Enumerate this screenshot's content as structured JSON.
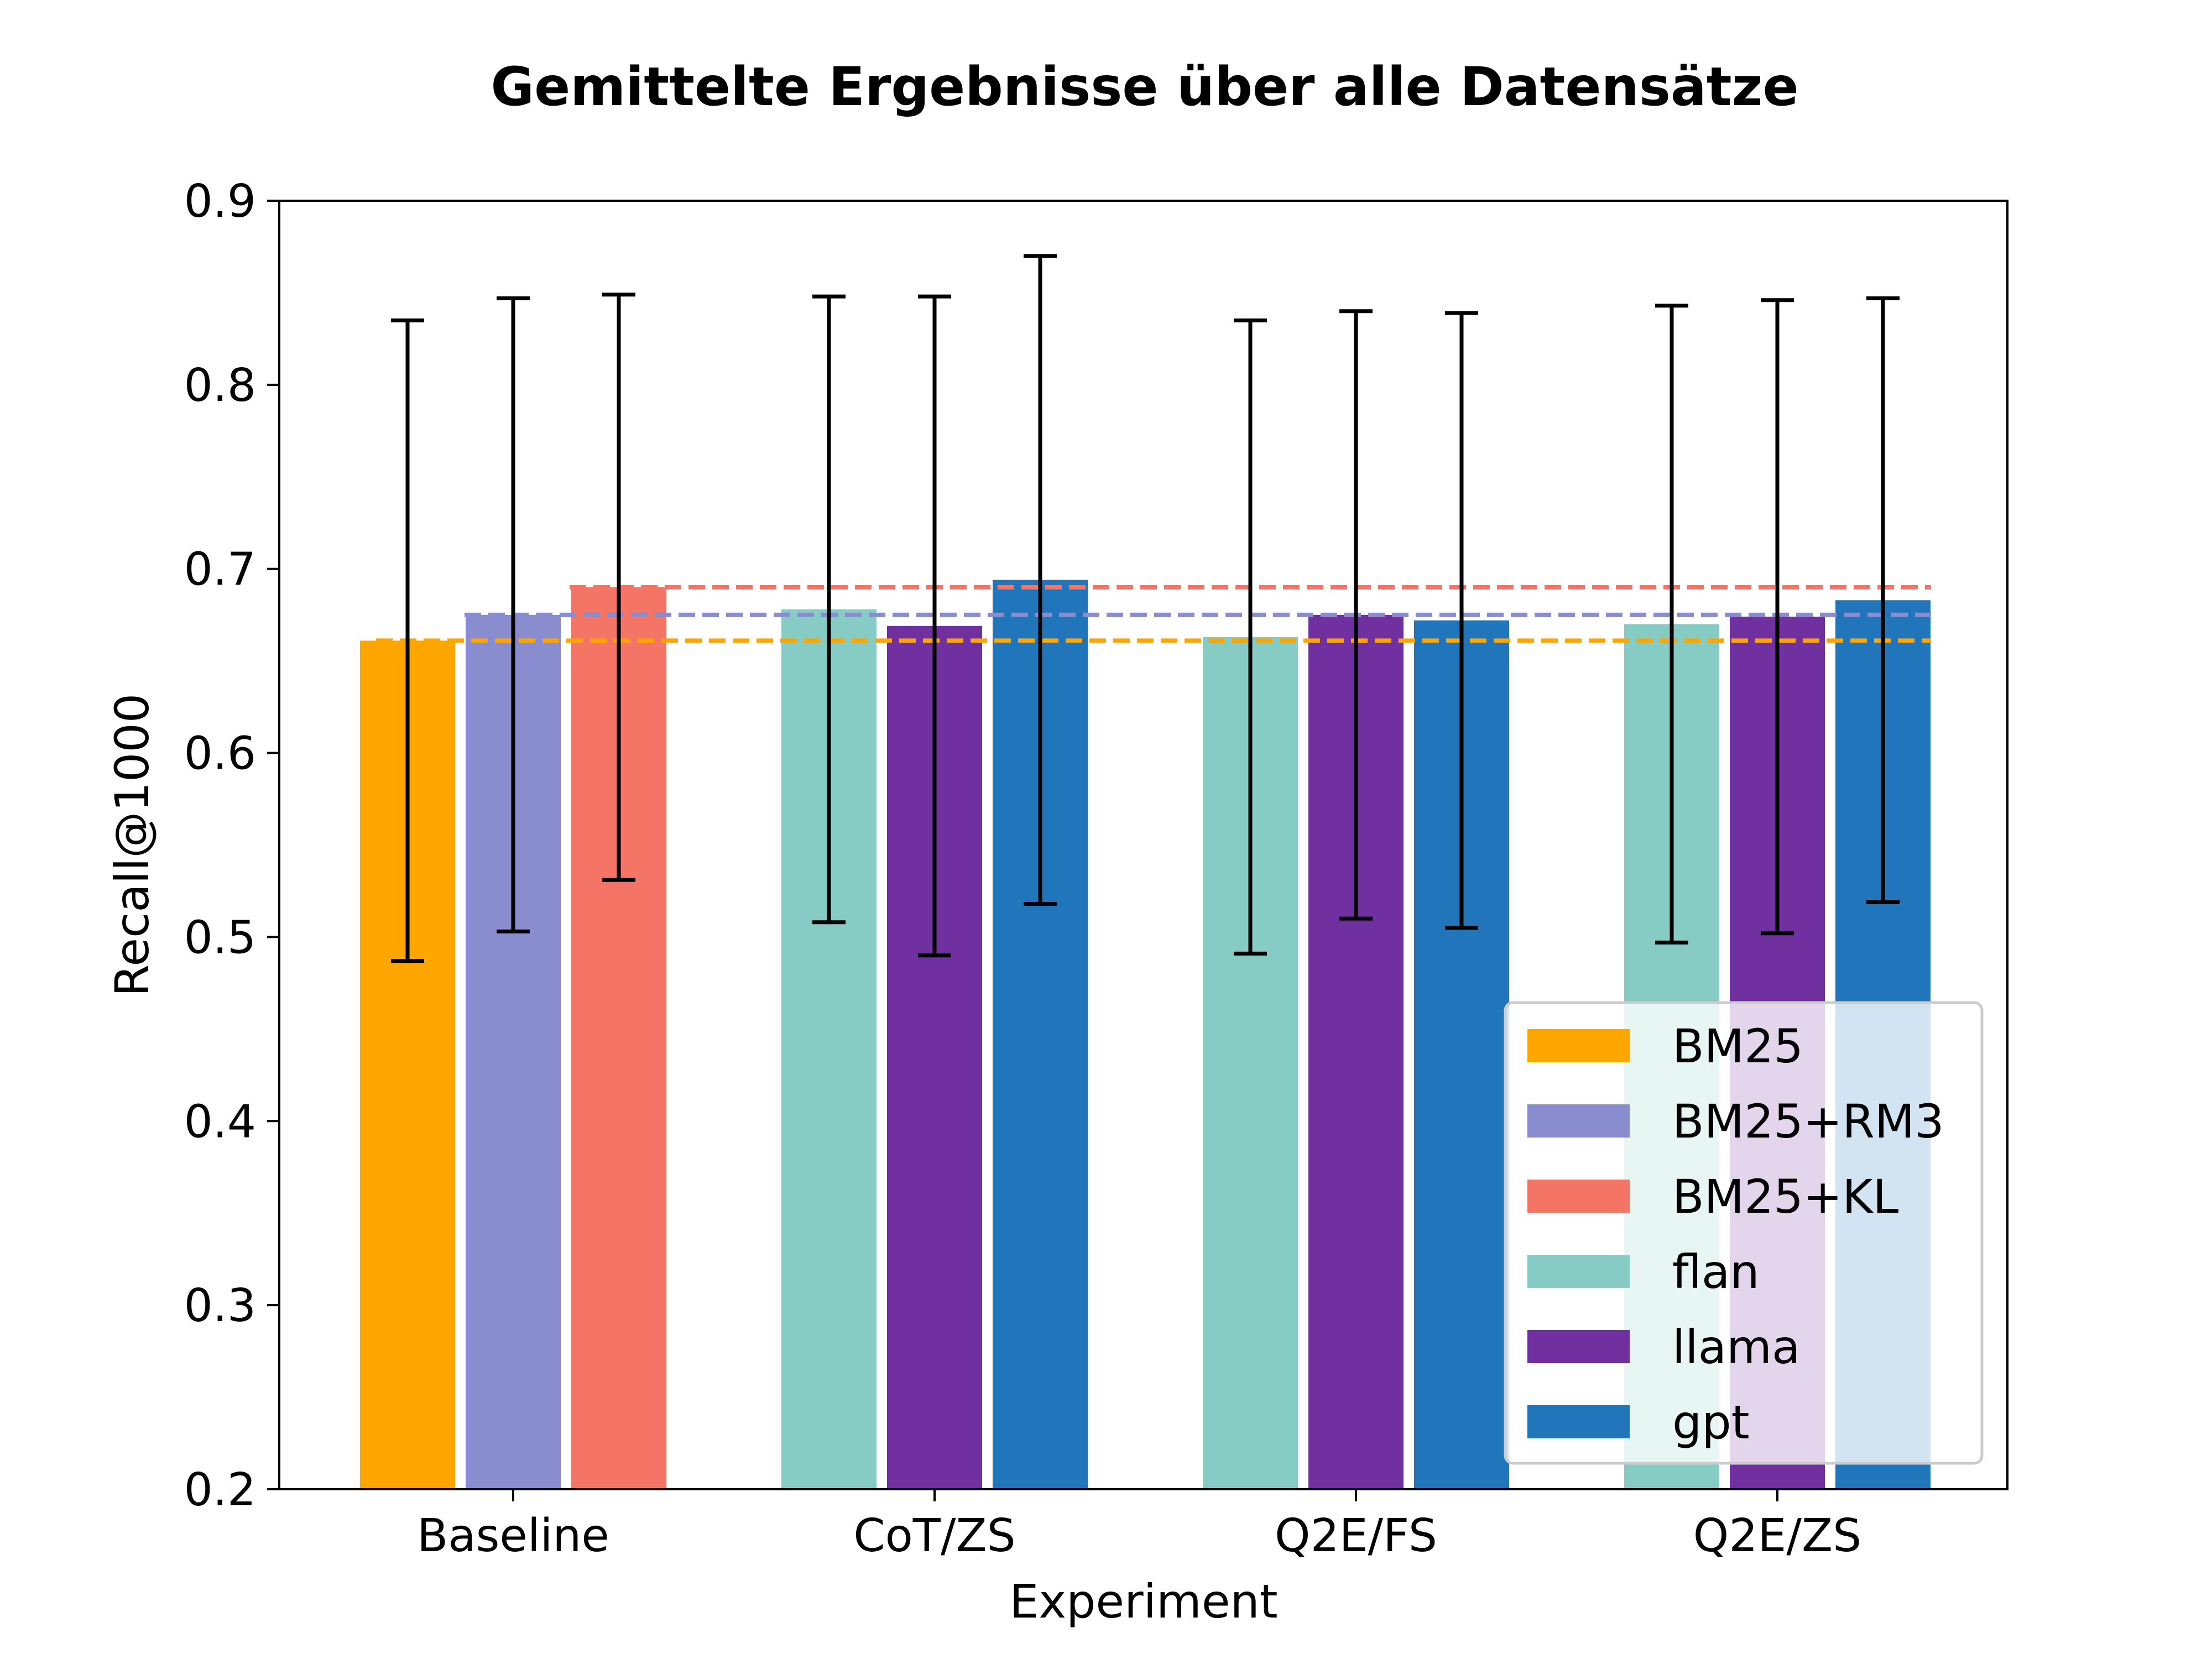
{
  "chart_data": {
    "type": "bar",
    "title": "Gemittelte Ergebnisse über alle Datensätze",
    "xlabel": "Experiment",
    "ylabel": "Recall@1000",
    "ylim": [
      0.2,
      0.9
    ],
    "yticks": [
      0.2,
      0.3,
      0.4,
      0.5,
      0.6,
      0.7,
      0.8,
      0.9
    ],
    "ytick_labels": [
      "0.2",
      "0.3",
      "0.4",
      "0.5",
      "0.6",
      "0.7",
      "0.8",
      "0.9"
    ],
    "categories": [
      "Baseline",
      "CoT/ZS",
      "Q2E/FS",
      "Q2E/ZS"
    ],
    "series": [
      {
        "name": "BM25",
        "color": "#ffa500",
        "values": [
          0.661,
          null,
          null,
          null
        ],
        "error": [
          0.174,
          null,
          null,
          null
        ]
      },
      {
        "name": "BM25+RM3",
        "color": "#8a8cd0",
        "values": [
          0.675,
          null,
          null,
          null
        ],
        "error": [
          0.172,
          null,
          null,
          null
        ]
      },
      {
        "name": "BM25+KL",
        "color": "#f47466",
        "values": [
          0.69,
          null,
          null,
          null
        ],
        "error": [
          0.159,
          null,
          null,
          null
        ]
      },
      {
        "name": "flan",
        "color": "#86cbc4",
        "values": [
          null,
          0.678,
          0.663,
          0.67
        ],
        "error": [
          null,
          0.17,
          0.172,
          0.173
        ]
      },
      {
        "name": "llama",
        "color": "#7030a0",
        "values": [
          null,
          0.669,
          0.675,
          0.674
        ],
        "error": [
          null,
          0.179,
          0.165,
          0.172
        ]
      },
      {
        "name": "gpt",
        "color": "#2175bb",
        "values": [
          null,
          0.694,
          0.672,
          0.683
        ],
        "error": [
          null,
          0.176,
          0.167,
          0.164
        ]
      }
    ],
    "reference_lines": [
      {
        "name": "BM25",
        "value": 0.661,
        "color": "#ffa500"
      },
      {
        "name": "BM25+RM3",
        "value": 0.675,
        "color": "#8a8cd0"
      },
      {
        "name": "BM25+KL",
        "value": 0.69,
        "color": "#f47466"
      }
    ],
    "legend": {
      "position": "lower-right"
    },
    "grid": false
  }
}
